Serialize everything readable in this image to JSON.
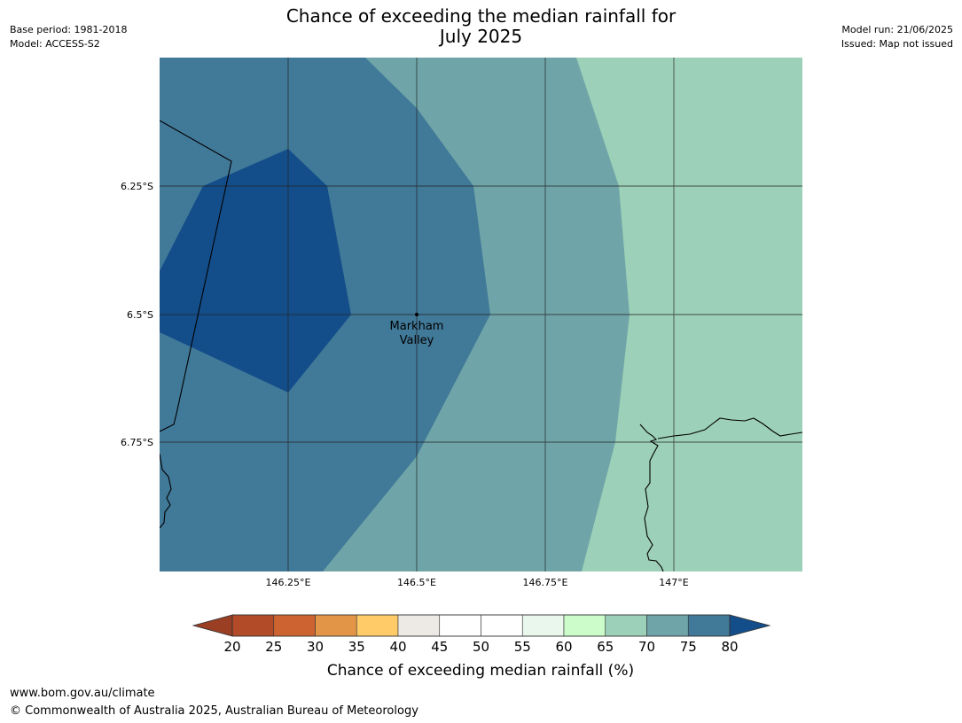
{
  "header": {
    "title_line1": "Chance of exceeding the median rainfall for",
    "title_line2": "July 2025",
    "base_period": "Base period: 1981-2018",
    "model": "Model: ACCESS-S2",
    "model_run": "Model run: 21/06/2025",
    "issued": "Issued: Map not issued"
  },
  "map": {
    "lon_ticks": [
      "146.25°E",
      "146.5°E",
      "146.75°E",
      "147°E"
    ],
    "lat_ticks": [
      "6.25°S",
      "6.5°S",
      "6.75°S"
    ],
    "place": {
      "name_line1": "Markham",
      "name_line2": "Valley"
    },
    "category_colors": {
      "65-70": "#9dd0b8",
      "70-75": "#6fa5a8",
      "75-80": "#417998",
      "80+": "#144e8a"
    }
  },
  "colorbar": {
    "title": "Chance of exceeding median rainfall (%)",
    "ticks": [
      "20",
      "25",
      "30",
      "35",
      "40",
      "45",
      "50",
      "55",
      "60",
      "65",
      "70",
      "75",
      "80"
    ],
    "below_color": "#9a3e24",
    "above_color": "#144e8a",
    "bin_colors": [
      "#b24b27",
      "#cc6330",
      "#e29546",
      "#fecb68",
      "#ede9e5",
      "#ffffff",
      "#ffffff",
      "#eaf7ec",
      "#cbfcca",
      "#9dd0b8",
      "#6fa5a8",
      "#417998"
    ]
  },
  "footer": {
    "url": "www.bom.gov.au/climate",
    "copyright": "© Commonwealth of Australia 2025, Australian Bureau of Meteorology"
  }
}
